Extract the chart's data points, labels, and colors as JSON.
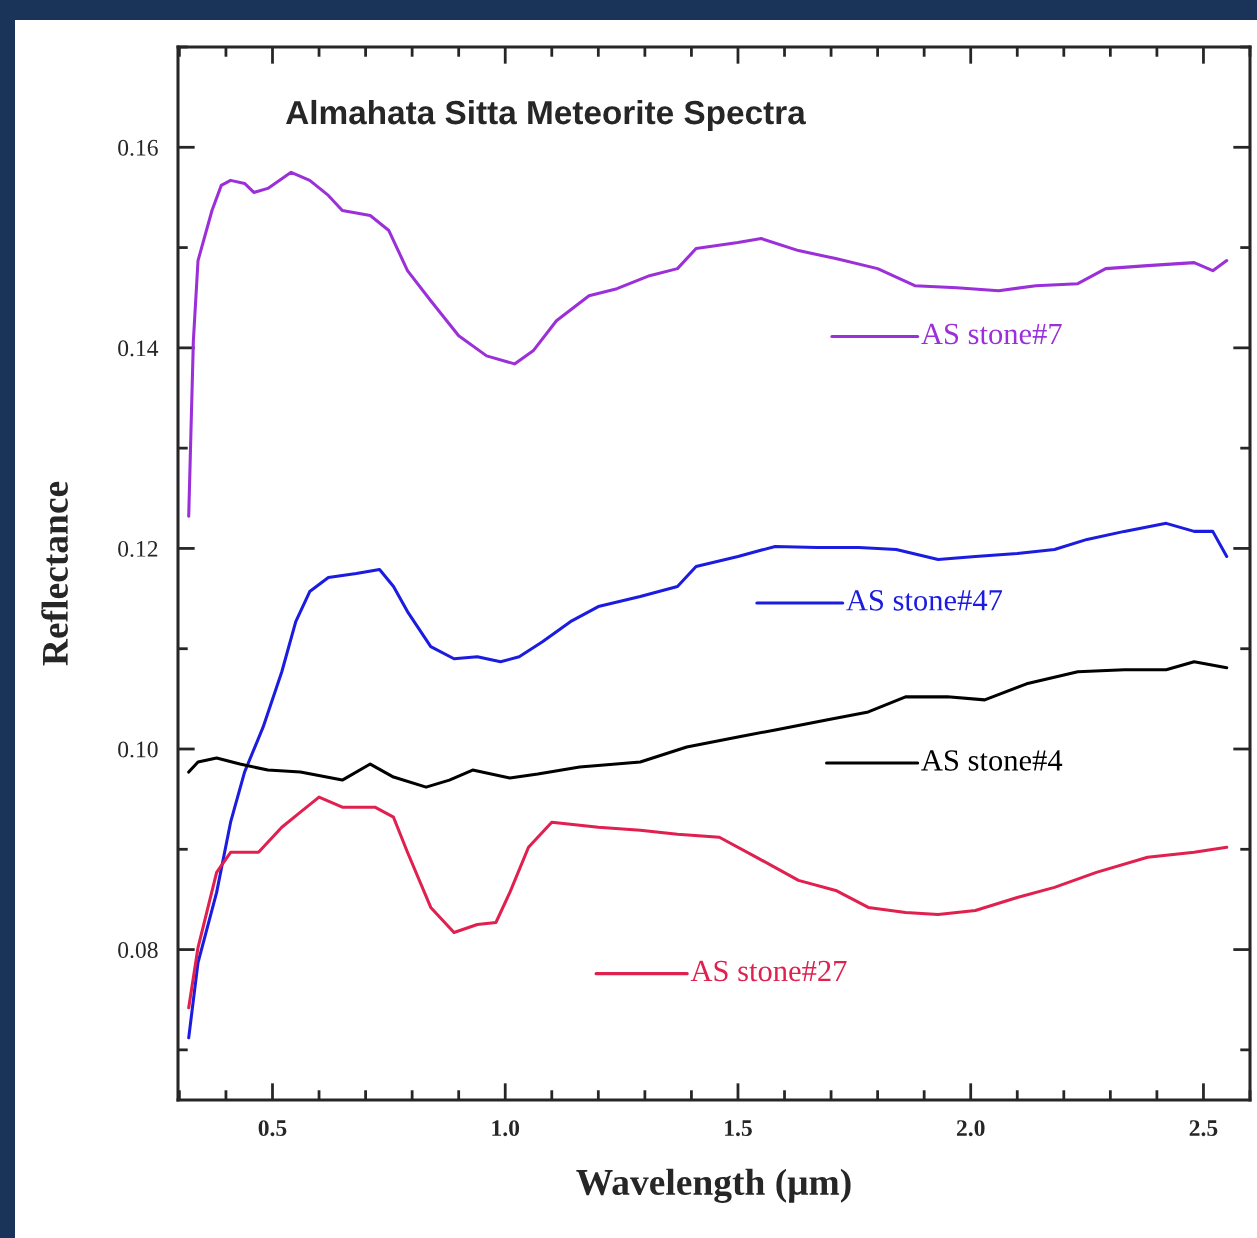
{
  "chart_data": {
    "type": "line",
    "title": "Almahata Sitta Meteorite Spectra",
    "xlabel": "Wavelength (μm)",
    "ylabel": "Reflectance",
    "xlim": [
      0.297,
      2.6
    ],
    "ylim": [
      0.065,
      0.17
    ],
    "xticks": [
      0.5,
      {
        "value": 1.0,
        "label": "1.0"
      },
      1.5,
      {
        "value": 2.0,
        "label": "2.0"
      },
      2.5
    ],
    "legend": "right",
    "yticks": [
      {
        "value": 0.08,
        "label": "0.08"
      },
      {
        "value": 0.1,
        "label": "0.10"
      },
      {
        "value": 0.12,
        "label": "0.12"
      },
      {
        "value": 0.14,
        "label": "0.14"
      },
      {
        "value": 0.16,
        "label": "0.16"
      }
    ],
    "grid": false,
    "marker": "none",
    "line_style": "solid",
    "series": [
      {
        "name": "AS stone#7",
        "color": "#9b30d9",
        "x": [
          0.32,
          0.33,
          0.34,
          0.37,
          0.39,
          0.41,
          0.44,
          0.46,
          0.49,
          0.54,
          0.58,
          0.62,
          0.65,
          0.71,
          0.75,
          0.79,
          0.84,
          0.9,
          0.96,
          1.02,
          1.06,
          1.11,
          1.18,
          1.24,
          1.31,
          1.37,
          1.41,
          1.5,
          1.55,
          1.63,
          1.71,
          1.8,
          1.88,
          1.97,
          2.06,
          2.14,
          2.23,
          2.29,
          2.38,
          2.48,
          2.52,
          2.55
        ],
        "values": [
          0.1232,
          0.1407,
          0.1487,
          0.1537,
          0.1562,
          0.1567,
          0.1564,
          0.1555,
          0.1559,
          0.1575,
          0.1567,
          0.1552,
          0.1537,
          0.1532,
          0.1517,
          0.1477,
          0.1447,
          0.1412,
          0.1392,
          0.1384,
          0.1397,
          0.1427,
          0.1452,
          0.1459,
          0.1472,
          0.1479,
          0.1499,
          0.1505,
          0.1509,
          0.1497,
          0.1489,
          0.1479,
          0.1462,
          0.146,
          0.1457,
          0.1462,
          0.1464,
          0.1479,
          0.1482,
          0.1485,
          0.1477,
          0.1487
        ]
      },
      {
        "name": "AS stone#47",
        "color": "#1c1ce0",
        "x": [
          0.32,
          0.34,
          0.38,
          0.41,
          0.44,
          0.48,
          0.52,
          0.55,
          0.58,
          0.62,
          0.68,
          0.73,
          0.76,
          0.79,
          0.84,
          0.89,
          0.94,
          0.99,
          1.03,
          1.08,
          1.14,
          1.2,
          1.29,
          1.37,
          1.41,
          1.5,
          1.58,
          1.67,
          1.76,
          1.84,
          1.93,
          2.01,
          2.1,
          2.18,
          2.25,
          2.33,
          2.42,
          2.48,
          2.52,
          2.55
        ],
        "values": [
          0.0712,
          0.0787,
          0.0857,
          0.0927,
          0.0977,
          0.1022,
          0.1077,
          0.1127,
          0.1157,
          0.1171,
          0.1175,
          0.1179,
          0.1162,
          0.1137,
          0.1102,
          0.109,
          0.1092,
          0.1087,
          0.1092,
          0.1107,
          0.1127,
          0.1142,
          0.1152,
          0.1162,
          0.1182,
          0.1192,
          0.1202,
          0.1201,
          0.1201,
          0.1199,
          0.1189,
          0.1192,
          0.1195,
          0.1199,
          0.1209,
          0.1217,
          0.1225,
          0.1217,
          0.1217,
          0.1192
        ]
      },
      {
        "name": "AS stone#4",
        "color": "#000000",
        "x": [
          0.32,
          0.34,
          0.38,
          0.43,
          0.49,
          0.56,
          0.65,
          0.71,
          0.76,
          0.83,
          0.88,
          0.93,
          1.01,
          1.07,
          1.16,
          1.29,
          1.39,
          1.5,
          1.58,
          1.69,
          1.78,
          1.86,
          1.95,
          2.03,
          2.12,
          2.23,
          2.33,
          2.42,
          2.48,
          2.55
        ],
        "values": [
          0.0977,
          0.0987,
          0.0991,
          0.0985,
          0.0979,
          0.0977,
          0.0969,
          0.0985,
          0.0972,
          0.0962,
          0.0969,
          0.0979,
          0.0971,
          0.0975,
          0.0982,
          0.0987,
          0.1002,
          0.1012,
          0.1019,
          0.1029,
          0.1037,
          0.1052,
          0.1052,
          0.1049,
          0.1065,
          0.1077,
          0.1079,
          0.1079,
          0.1087,
          0.1081
        ]
      },
      {
        "name": "AS stone#27",
        "color": "#e0204f",
        "x": [
          0.32,
          0.34,
          0.38,
          0.41,
          0.47,
          0.52,
          0.56,
          0.6,
          0.65,
          0.72,
          0.76,
          0.79,
          0.84,
          0.89,
          0.94,
          0.98,
          1.01,
          1.05,
          1.1,
          1.2,
          1.29,
          1.37,
          1.46,
          1.54,
          1.63,
          1.71,
          1.78,
          1.86,
          1.93,
          2.01,
          2.1,
          2.18,
          2.27,
          2.38,
          2.48,
          2.55
        ],
        "values": [
          0.0742,
          0.0802,
          0.0877,
          0.0897,
          0.0897,
          0.0922,
          0.0937,
          0.0952,
          0.0942,
          0.0942,
          0.0932,
          0.0897,
          0.0842,
          0.0817,
          0.0825,
          0.0827,
          0.0857,
          0.0902,
          0.0927,
          0.0922,
          0.0919,
          0.0915,
          0.0912,
          0.0892,
          0.0869,
          0.0859,
          0.0842,
          0.0837,
          0.0835,
          0.0839,
          0.0852,
          0.0862,
          0.0877,
          0.0892,
          0.0897,
          0.0902
        ]
      }
    ]
  }
}
